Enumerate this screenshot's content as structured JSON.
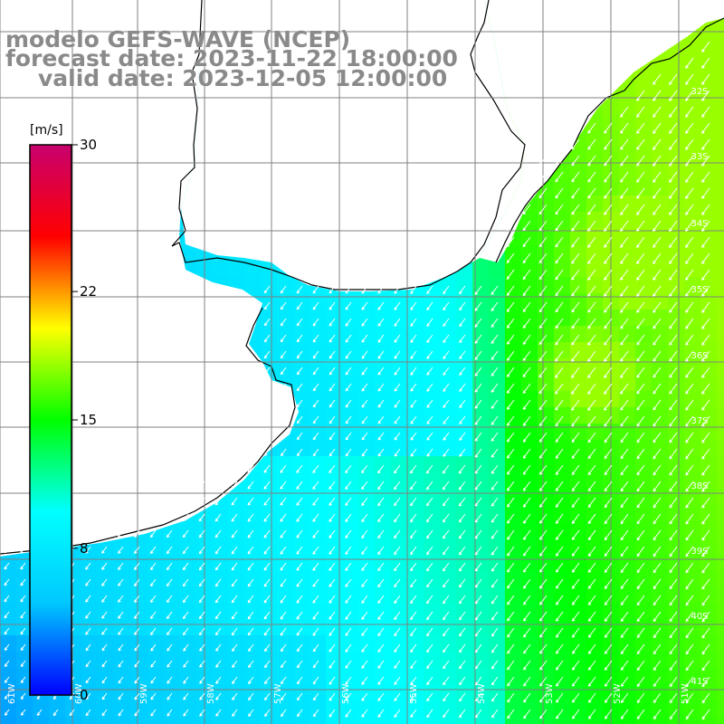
{
  "titles": {
    "model": "modelo GEFS-WAVE (NCEP)",
    "forecast": "forecast date: 2023-11-22 18:00:00",
    "valid": "valid date: 2023-12-05 12:00:00"
  },
  "colorbar": {
    "unit": "[m/s]",
    "ticks": [
      "30",
      "22",
      "15",
      "8",
      "0"
    ],
    "tick_values": [
      30,
      22,
      15,
      8,
      0
    ],
    "min": 0,
    "max": 30,
    "colors": [
      "#0000ff",
      "#00c8ff",
      "#00ffff",
      "#00ff00",
      "#ffff00",
      "#ff0000",
      "#c8006e"
    ]
  },
  "map": {
    "lat_labels": [
      "32S",
      "33S",
      "34S",
      "35S",
      "36S",
      "37S",
      "38S",
      "39S",
      "40S",
      "41S"
    ],
    "lon_labels": [
      "61W",
      "60W",
      "59W",
      "58W",
      "57W",
      "56W",
      "55W",
      "54W",
      "53W",
      "52W",
      "51W"
    ],
    "land_color": "#ffffff",
    "coast_color": "#000000",
    "grid_color": "#808080",
    "arrow_color": "#ffffff",
    "wind_direction": "from northeast (arrows pointing southwest)"
  }
}
